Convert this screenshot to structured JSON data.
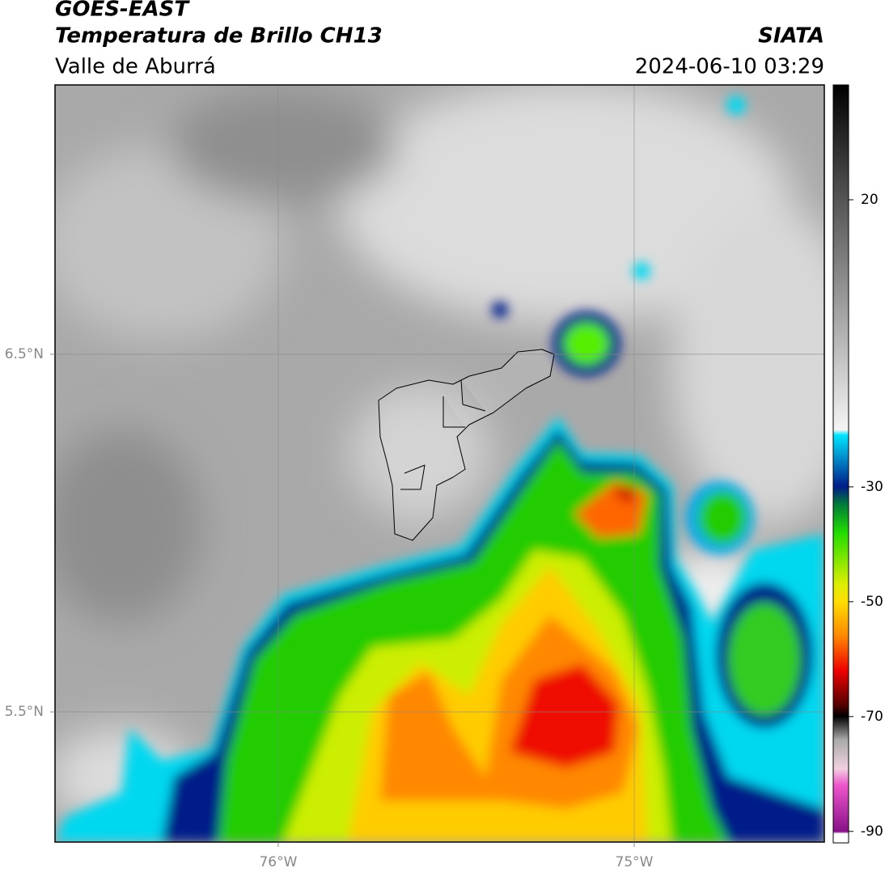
{
  "header": {
    "title": "GOES-EAST",
    "subtitle": "Temperatura de Brillo CH13",
    "region": "Valle de Aburrá",
    "source": "SIATA",
    "timestamp": "2024-06-10 03:29"
  },
  "map": {
    "xlim": [
      -76.627,
      -74.466
    ],
    "ylim": [
      5.136,
      7.253
    ],
    "xticks": [
      {
        "value": -76,
        "label": "76°W"
      },
      {
        "value": -75,
        "label": "75°W"
      }
    ],
    "yticks": [
      {
        "value": 5.5,
        "label": "5.5°N"
      },
      {
        "value": 6.5,
        "label": "6.5°N"
      }
    ],
    "grid": true
  },
  "colorbar": {
    "clim": [
      -92,
      40
    ],
    "ticks": [
      20,
      -30,
      -50,
      -70,
      -90
    ]
  }
}
